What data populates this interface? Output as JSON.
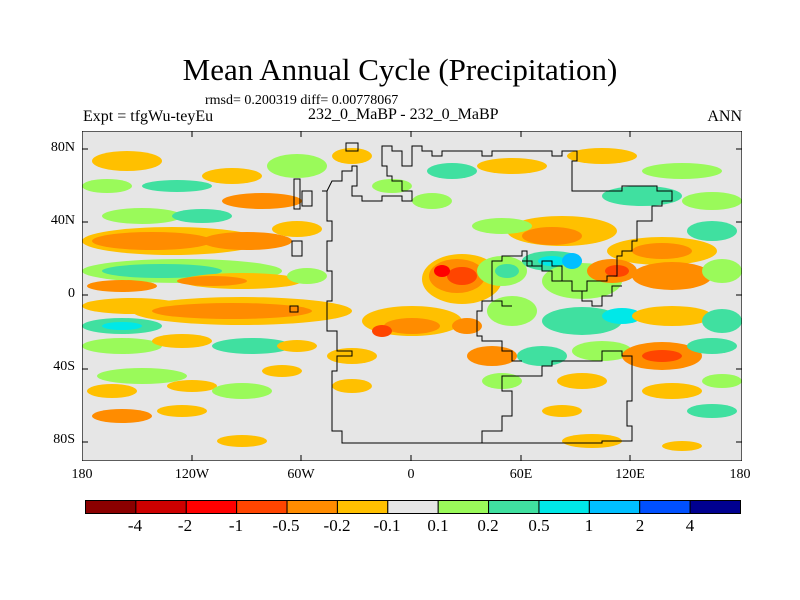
{
  "title": "Mean Annual Cycle (Precipitation)",
  "stats": "rmsd= 0.200319 diff= 0.00778067",
  "expt_label": "Expt = tfgWu-teyEu",
  "case_label": "232_0_MaBP - 232_0_MaBP",
  "season": "ANN",
  "lat_ticks": [
    "80N",
    "40N",
    "0",
    "40S",
    "80S"
  ],
  "lon_ticks": [
    "180",
    "120W",
    "60W",
    "0",
    "60E",
    "120E",
    "180"
  ],
  "colorbar": {
    "colors": [
      "#8b0000",
      "#cd0000",
      "#ff0000",
      "#ff4500",
      "#ff8c00",
      "#ffc000",
      "#e6e6e6",
      "#9afa5a",
      "#40e0a0",
      "#00e8e8",
      "#00bfff",
      "#0050ff",
      "#000090"
    ],
    "labels": [
      "-4",
      "-2",
      "-1",
      "-0.5",
      "-0.2",
      "-0.1",
      "0.1",
      "0.2",
      "0.5",
      "1",
      "2",
      "4"
    ]
  }
}
